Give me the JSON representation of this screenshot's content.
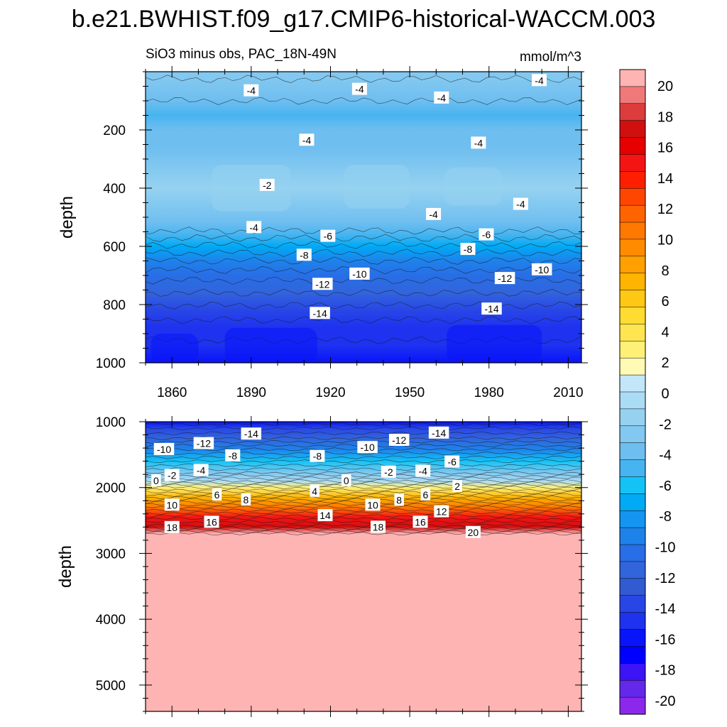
{
  "figure_title": "b.e21.BWHIST.f09_g17.CMIP6-historical-WACCM.003",
  "chart_data": [
    {
      "type": "contour",
      "panel": "upper",
      "title_left": "SiO3 minus obs, PAC_18N-49N",
      "title_right": "mmol/m^3",
      "ylabel": "depth",
      "xlabel": "",
      "xlim": [
        1850,
        2015
      ],
      "ylim": [
        1000,
        0
      ],
      "y_inverted": true,
      "xticks": [
        1860,
        1890,
        1920,
        1950,
        1980,
        2010
      ],
      "xtick_labels": [
        "1860",
        "1890",
        "1920",
        "1950",
        "1980",
        "2010"
      ],
      "yticks": [
        200,
        400,
        600,
        800,
        1000
      ],
      "ytick_labels": [
        "200",
        "400",
        "600",
        "800",
        "1000"
      ],
      "depth_profile": [
        {
          "depth": 25,
          "value": -3
        },
        {
          "depth": 100,
          "value": -4
        },
        {
          "depth": 150,
          "value": -4.6
        },
        {
          "depth": 200,
          "value": -4.3
        },
        {
          "depth": 260,
          "value": -3.4
        },
        {
          "depth": 330,
          "value": -2.6
        },
        {
          "depth": 400,
          "value": -2.2
        },
        {
          "depth": 460,
          "value": -2.6
        },
        {
          "depth": 520,
          "value": -4
        },
        {
          "depth": 560,
          "value": -5.5
        },
        {
          "depth": 600,
          "value": -7.2
        },
        {
          "depth": 650,
          "value": -9
        },
        {
          "depth": 700,
          "value": -10.6
        },
        {
          "depth": 760,
          "value": -12
        },
        {
          "depth": 820,
          "value": -13.4
        },
        {
          "depth": 880,
          "value": -14.5
        },
        {
          "depth": 940,
          "value": -15.2
        },
        {
          "depth": 1000,
          "value": -15.6
        }
      ],
      "contour_labels": [
        {
          "year": 1890,
          "depth": 65,
          "text": "-4"
        },
        {
          "year": 1931,
          "depth": 60,
          "text": "-4"
        },
        {
          "year": 1962,
          "depth": 90,
          "text": "-4"
        },
        {
          "year": 1999,
          "depth": 30,
          "text": "-4"
        },
        {
          "year": 1911,
          "depth": 235,
          "text": "-4"
        },
        {
          "year": 1976,
          "depth": 245,
          "text": "-4"
        },
        {
          "year": 1896,
          "depth": 390,
          "text": "-2"
        },
        {
          "year": 1891,
          "depth": 535,
          "text": "-4"
        },
        {
          "year": 1959,
          "depth": 490,
          "text": "-4"
        },
        {
          "year": 1992,
          "depth": 455,
          "text": "-4"
        },
        {
          "year": 1919,
          "depth": 565,
          "text": "-6"
        },
        {
          "year": 1979,
          "depth": 560,
          "text": "-6"
        },
        {
          "year": 1910,
          "depth": 630,
          "text": "-8"
        },
        {
          "year": 1972,
          "depth": 610,
          "text": "-8"
        },
        {
          "year": 1931,
          "depth": 695,
          "text": "-10"
        },
        {
          "year": 2000,
          "depth": 680,
          "text": "-10"
        },
        {
          "year": 1917,
          "depth": 730,
          "text": "-12"
        },
        {
          "year": 1986,
          "depth": 710,
          "text": "-12"
        },
        {
          "year": 1916,
          "depth": 830,
          "text": "-14"
        },
        {
          "year": 1981,
          "depth": 815,
          "text": "-14"
        }
      ]
    },
    {
      "type": "contour",
      "panel": "lower",
      "ylabel": "depth",
      "xlabel": "",
      "xlim": [
        1850,
        2015
      ],
      "ylim": [
        5400,
        1000
      ],
      "y_inverted": true,
      "yticks": [
        1000,
        2000,
        3000,
        4000,
        5000
      ],
      "ytick_labels": [
        "1000",
        "2000",
        "3000",
        "4000",
        "5000"
      ],
      "depth_profile": [
        {
          "depth": 1000,
          "value": -15.6
        },
        {
          "depth": 1100,
          "value": -14
        },
        {
          "depth": 1250,
          "value": -12
        },
        {
          "depth": 1420,
          "value": -9
        },
        {
          "depth": 1600,
          "value": -6
        },
        {
          "depth": 1780,
          "value": -3
        },
        {
          "depth": 1900,
          "value": 0
        },
        {
          "depth": 2000,
          "value": 3
        },
        {
          "depth": 2150,
          "value": 7
        },
        {
          "depth": 2300,
          "value": 11
        },
        {
          "depth": 2450,
          "value": 14.5
        },
        {
          "depth": 2600,
          "value": 17.5
        },
        {
          "depth": 2700,
          "value": 21
        },
        {
          "depth": 5400,
          "value": 21
        }
      ],
      "contour_labels": [
        {
          "year": 1890,
          "depth": 1185,
          "text": "-14"
        },
        {
          "year": 1946,
          "depth": 1280,
          "text": "-12"
        },
        {
          "year": 1961,
          "depth": 1170,
          "text": "-14"
        },
        {
          "year": 1857,
          "depth": 1420,
          "text": "-10"
        },
        {
          "year": 1872,
          "depth": 1330,
          "text": "-12"
        },
        {
          "year": 1883,
          "depth": 1515,
          "text": "-8"
        },
        {
          "year": 1934,
          "depth": 1390,
          "text": "-10"
        },
        {
          "year": 1915,
          "depth": 1525,
          "text": "-8"
        },
        {
          "year": 1966,
          "depth": 1610,
          "text": "-6"
        },
        {
          "year": 1854,
          "depth": 1895,
          "text": "0"
        },
        {
          "year": 1860,
          "depth": 1815,
          "text": "-2"
        },
        {
          "year": 1871,
          "depth": 1740,
          "text": "-4"
        },
        {
          "year": 1942,
          "depth": 1765,
          "text": "-2"
        },
        {
          "year": 1955,
          "depth": 1750,
          "text": "-4"
        },
        {
          "year": 1926,
          "depth": 1895,
          "text": "0"
        },
        {
          "year": 1914,
          "depth": 2055,
          "text": "4"
        },
        {
          "year": 1968,
          "depth": 1980,
          "text": "2"
        },
        {
          "year": 1877,
          "depth": 2110,
          "text": "6"
        },
        {
          "year": 1888,
          "depth": 2185,
          "text": "8"
        },
        {
          "year": 1936,
          "depth": 2265,
          "text": "10"
        },
        {
          "year": 1946,
          "depth": 2190,
          "text": "8"
        },
        {
          "year": 1956,
          "depth": 2110,
          "text": "6"
        },
        {
          "year": 1860,
          "depth": 2265,
          "text": "10"
        },
        {
          "year": 1918,
          "depth": 2425,
          "text": "14"
        },
        {
          "year": 1962,
          "depth": 2365,
          "text": "12"
        },
        {
          "year": 1860,
          "depth": 2605,
          "text": "18"
        },
        {
          "year": 1875,
          "depth": 2525,
          "text": "16"
        },
        {
          "year": 1938,
          "depth": 2600,
          "text": "18"
        },
        {
          "year": 1954,
          "depth": 2525,
          "text": "16"
        },
        {
          "year": 1974,
          "depth": 2680,
          "text": "20"
        }
      ]
    }
  ],
  "colorbar": {
    "tick_labels": [
      "20",
      "18",
      "16",
      "14",
      "12",
      "10",
      "8",
      "6",
      "4",
      "2",
      "0",
      "-2",
      "-4",
      "-6",
      "-8",
      "-10",
      "-12",
      "-14",
      "-16",
      "-18",
      "-20"
    ],
    "colors_top_to_bottom": [
      "#ffb4b4",
      "#f07878",
      "#dc3c3c",
      "#d20f0f",
      "#e60000",
      "#f51414",
      "#ff1e00",
      "#ff4600",
      "#ff6400",
      "#ff7800",
      "#ff8c00",
      "#ffa000",
      "#ffb400",
      "#ffc814",
      "#ffdc32",
      "#ffe650",
      "#fff078",
      "#fffab4",
      "#c3e6f8",
      "#aadcf5",
      "#96d2f0",
      "#82c8f0",
      "#6ebef0",
      "#46b4f0",
      "#14c3f5",
      "#00aaf5",
      "#1496f0",
      "#1e82eb",
      "#286ee6",
      "#3264dc",
      "#325ad2",
      "#2846e6",
      "#1e32f0",
      "#0a14fa",
      "#0000ff",
      "#3c14f5",
      "#6428eb",
      "#8c28eb"
    ]
  }
}
